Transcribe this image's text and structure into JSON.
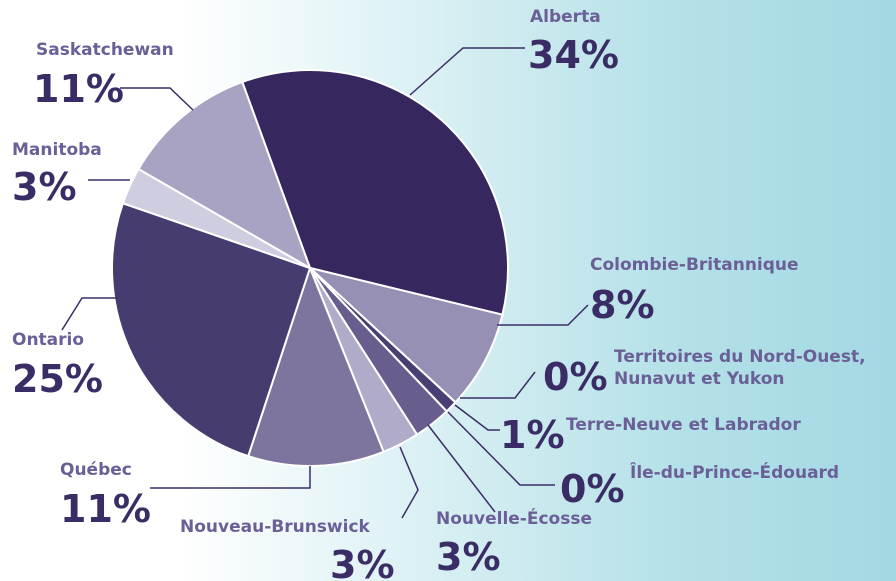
{
  "chart_data": {
    "type": "pie",
    "categories": [
      "Alberta",
      "Colombie-Britannique",
      "Territoires du Nord-Ouest,\nNunavut et Yukon",
      "Terre-Neuve et Labrador",
      "Île-du-Prince-Édouard",
      "Nouvelle-Écosse",
      "Nouveau-Brunswick",
      "Québec",
      "Ontario",
      "Manitoba",
      "Saskatchewan"
    ],
    "values": [
      34,
      8,
      0,
      1,
      0,
      3,
      3,
      11,
      25,
      3,
      11
    ],
    "value_labels": [
      "34%",
      "8%",
      "0%",
      "1%",
      "0%",
      "3%",
      "3%",
      "11%",
      "25%",
      "3%",
      "11%"
    ],
    "colors": [
      "#36275f",
      "#9690b5",
      "#c8c5dc",
      "#4a3f73",
      "#c8c5dc",
      "#685d8d",
      "#b0abc8",
      "#7e759f",
      "#473c70",
      "#cfcde0",
      "#a8a3c3"
    ]
  }
}
